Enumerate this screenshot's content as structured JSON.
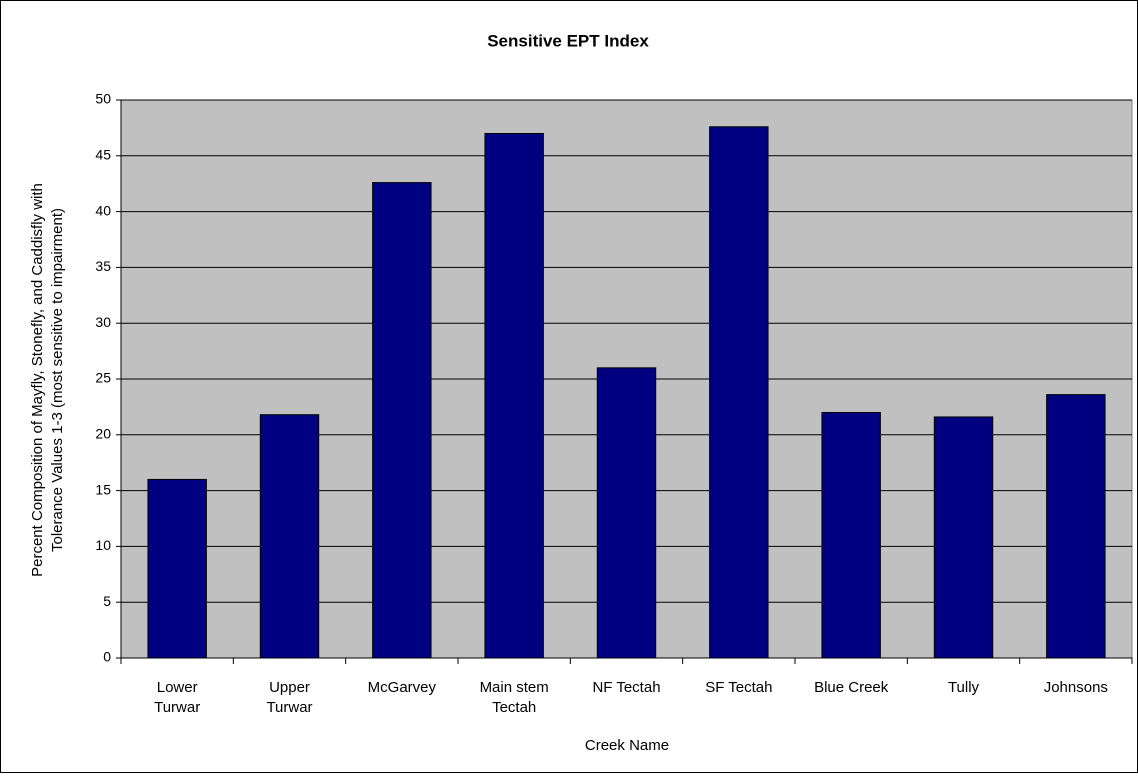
{
  "chart_data": {
    "type": "bar",
    "title": "Sensitive EPT Index",
    "x_label": "Creek Name",
    "y_label": "Percent Composition of Mayfly, Stonefly, and Caddisfly with\nTolerance Values 1-3 (most sensitive to impairment)",
    "categories": [
      "Lower\nTurwar",
      "Upper\nTurwar",
      "McGarvey",
      "Main stem\nTectah",
      "NF Tectah",
      "SF Tectah",
      "Blue Creek",
      "Tully",
      "Johnsons"
    ],
    "values": [
      16,
      21.8,
      42.6,
      47,
      26,
      47.6,
      22,
      21.6,
      23.6
    ],
    "color": "#000080",
    "ylim": [
      0,
      50
    ],
    "yticks": [
      0,
      5,
      10,
      15,
      20,
      25,
      30,
      35,
      40,
      45,
      50
    ],
    "grid": true
  }
}
